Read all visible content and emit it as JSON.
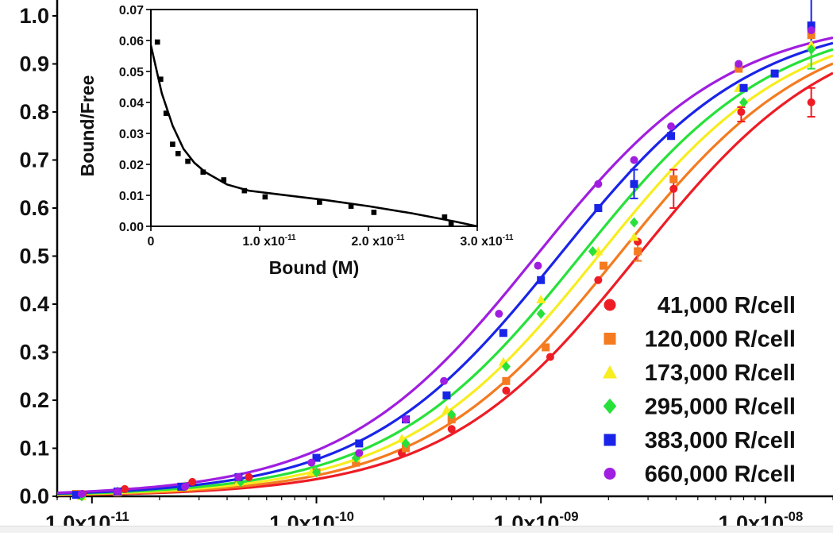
{
  "chart_data": [
    {
      "type": "scatter",
      "xscale": "log",
      "xlim": [
        7e-12,
        2e-08
      ],
      "ylim": [
        0.0,
        1.0
      ],
      "yticks": [
        0.0,
        0.1,
        0.2,
        0.3,
        0.4,
        0.5,
        0.6,
        0.7,
        0.8,
        0.9,
        1.0
      ],
      "ytick_labels": [
        "0.0",
        "0.1",
        "0.2",
        "0.3",
        "0.4",
        "0.5",
        "0.6",
        "0.7",
        "0.8",
        "0.9",
        "1.0"
      ],
      "xticks": [
        1e-11,
        1e-10,
        1e-09,
        1e-08
      ],
      "xtick_labels": [
        {
          "mantissa": "1.0x10",
          "exponent": "-11"
        },
        {
          "mantissa": "1.0x10",
          "exponent": "-10"
        },
        {
          "mantissa": "1.0x10",
          "exponent": "-09"
        },
        {
          "mantissa": "1.0x10",
          "exponent": "-08"
        }
      ],
      "xlabel": "",
      "ylabel": "",
      "legend_position": "bottom-right",
      "series": [
        {
          "name": "41,000 R/cell",
          "marker": "circle",
          "color": "#ee1c25",
          "fit_kd": 2.7e-09,
          "x": [
            9.1e-12,
            1.4e-11,
            2.8e-11,
            5e-11,
            1e-10,
            1.5e-10,
            2.4e-10,
            4e-10,
            7e-10,
            1.1e-09,
            1.8e-09,
            2.7e-09,
            3.9e-09,
            7.8e-09,
            1.6e-08
          ],
          "y": [
            0.005,
            0.015,
            0.03,
            0.04,
            0.05,
            0.07,
            0.09,
            0.14,
            0.22,
            0.29,
            0.45,
            0.53,
            0.64,
            0.8,
            0.82
          ]
        },
        {
          "name": "120,000 R/cell",
          "marker": "square",
          "color": "#f47b20",
          "fit_kd": 2.2e-09,
          "x": [
            8.5e-12,
            1.3e-11,
            2.5e-11,
            4.5e-11,
            1e-10,
            1.5e-10,
            2.5e-10,
            4e-10,
            7e-10,
            1.05e-09,
            1.9e-09,
            2.7e-09,
            3.9e-09,
            7.6e-09,
            1.6e-08
          ],
          "y": [
            0.005,
            0.008,
            0.02,
            0.03,
            0.05,
            0.07,
            0.1,
            0.16,
            0.24,
            0.31,
            0.48,
            0.51,
            0.66,
            0.89,
            0.96
          ]
        },
        {
          "name": "173,000 R/cell",
          "marker": "triangle",
          "color": "#f7ed1f",
          "fit_kd": 1.8e-09,
          "x": [
            9e-12,
            1.3e-11,
            2.6e-11,
            4.5e-11,
            9.5e-11,
            1.5e-10,
            2.4e-10,
            3.8e-10,
            6.8e-10,
            1e-09,
            1.8e-09,
            2.6e-09,
            7.6e-09,
            1.6e-08
          ],
          "y": [
            0.0,
            0.01,
            0.02,
            0.03,
            0.05,
            0.08,
            0.12,
            0.18,
            0.28,
            0.41,
            0.51,
            0.54,
            0.85,
            0.94
          ]
        },
        {
          "name": "295,000 R/cell",
          "marker": "diamond",
          "color": "#27e13a",
          "fit_kd": 1.5e-09,
          "x": [
            9e-12,
            1.3e-11,
            2.6e-11,
            4.6e-11,
            1e-10,
            1.5e-10,
            2.5e-10,
            4e-10,
            7e-10,
            1e-09,
            1.7e-09,
            2.6e-09,
            8e-09,
            1.6e-08
          ],
          "y": [
            0.0,
            0.01,
            0.02,
            0.03,
            0.05,
            0.08,
            0.11,
            0.17,
            0.27,
            0.38,
            0.51,
            0.57,
            0.82,
            0.93
          ]
        },
        {
          "name": "383,000 R/cell",
          "marker": "square",
          "color": "#1a24e8",
          "fit_kd": 1.2e-09,
          "x": [
            8.5e-12,
            1.3e-11,
            2.5e-11,
            4.5e-11,
            1e-10,
            1.55e-10,
            2.5e-10,
            3.8e-10,
            6.8e-10,
            1e-09,
            1.8e-09,
            2.6e-09,
            3.8e-09,
            8e-09,
            1.1e-08,
            1.6e-08
          ],
          "y": [
            0.003,
            0.01,
            0.02,
            0.04,
            0.08,
            0.11,
            0.16,
            0.21,
            0.34,
            0.45,
            0.6,
            0.65,
            0.75,
            0.85,
            0.88,
            0.98
          ]
        },
        {
          "name": "660,000 R/cell",
          "marker": "circle",
          "color": "#a01ee0",
          "fit_kd": 9.5e-10,
          "x": [
            9e-12,
            1.3e-11,
            2.6e-11,
            4.5e-11,
            9.5e-11,
            1.55e-10,
            2.5e-10,
            3.7e-10,
            6.5e-10,
            9.7e-10,
            1.8e-09,
            2.6e-09,
            3.8e-09,
            7.6e-09,
            1.6e-08
          ],
          "y": [
            0.005,
            0.01,
            0.02,
            0.04,
            0.07,
            0.09,
            0.16,
            0.24,
            0.38,
            0.48,
            0.65,
            0.7,
            0.77,
            0.9,
            0.97
          ]
        }
      ],
      "error_bars": [
        {
          "series": "41,000 R/cell",
          "x": 3.9e-09,
          "low": 0.6,
          "high": 0.68
        },
        {
          "series": "41,000 R/cell",
          "x": 7.8e-09,
          "low": 0.78,
          "high": 0.81
        },
        {
          "series": "41,000 R/cell",
          "x": 1.6e-08,
          "low": 0.79,
          "high": 0.85
        },
        {
          "series": "120,000 R/cell",
          "x": 2.7e-09,
          "low": 0.49,
          "high": 0.53
        },
        {
          "series": "173,000 R/cell",
          "x": 1.6e-08,
          "low": 0.9,
          "high": 0.98
        },
        {
          "series": "295,000 R/cell",
          "x": 1.6e-08,
          "low": 0.89,
          "high": 0.97
        },
        {
          "series": "383,000 R/cell",
          "x": 1.6e-08,
          "low": 0.93,
          "high": 1.04
        },
        {
          "series": "383,000 R/cell",
          "x": 2.6e-09,
          "low": 0.62,
          "high": 0.68
        }
      ]
    },
    {
      "type": "scatter",
      "title": "",
      "xlabel": "Bound (M)",
      "ylabel": "Bound/Free",
      "xlim": [
        0,
        3e-11
      ],
      "ylim": [
        0.0,
        0.07
      ],
      "yticks": [
        0.0,
        0.01,
        0.02,
        0.03,
        0.04,
        0.05,
        0.06,
        0.07
      ],
      "ytick_labels": [
        "0.00",
        "0.01",
        "0.02",
        "0.03",
        "0.04",
        "0.05",
        "0.06",
        "0.07"
      ],
      "xticks": [
        0,
        1e-11,
        2e-11,
        3e-11
      ],
      "xtick_labels": [
        {
          "mantissa": "0",
          "exponent": ""
        },
        {
          "mantissa": "1.0 x10",
          "exponent": "-11"
        },
        {
          "mantissa": "2.0 x10",
          "exponent": "-11"
        },
        {
          "mantissa": "3.0 x10",
          "exponent": "-11"
        }
      ],
      "points": {
        "x": [
          6e-13,
          9e-13,
          1.4e-12,
          2e-12,
          2.5e-12,
          3.4e-12,
          4.8e-12,
          6.7e-12,
          8.6e-12,
          1.05e-11,
          1.55e-11,
          1.84e-11,
          2.05e-11,
          2.7e-11,
          2.76e-11
        ],
        "y": [
          0.0595,
          0.0475,
          0.0365,
          0.0265,
          0.0235,
          0.021,
          0.0175,
          0.015,
          0.0115,
          0.0095,
          0.0078,
          0.0065,
          0.0045,
          0.003,
          0.001
        ]
      },
      "fit_line": {
        "x": [
          0,
          1e-12,
          2e-12,
          3e-12,
          4e-12,
          5e-12,
          7e-12,
          9e-12,
          1.2e-11,
          1.6e-11,
          2e-11,
          2.4e-11,
          2.8e-11,
          3e-11
        ],
        "y": [
          0.0585,
          0.043,
          0.0325,
          0.025,
          0.0205,
          0.0175,
          0.0135,
          0.0115,
          0.0102,
          0.0085,
          0.0065,
          0.0042,
          0.0015,
          0.0
        ]
      }
    }
  ]
}
